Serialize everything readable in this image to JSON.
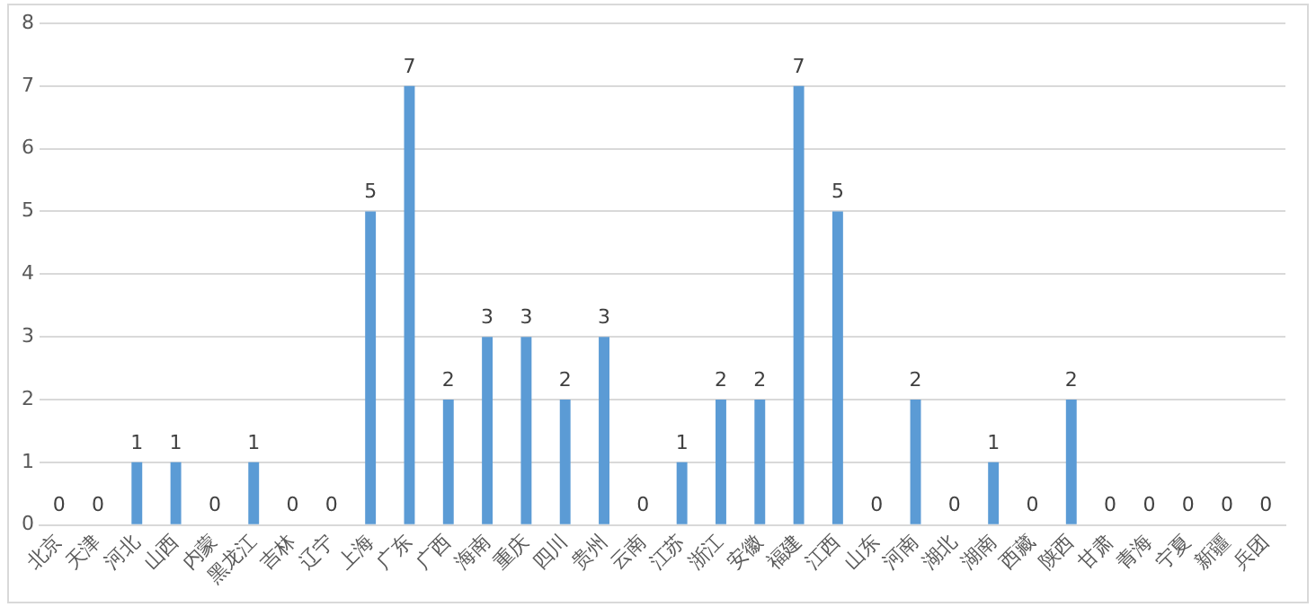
{
  "chart_data": {
    "type": "bar",
    "categories": [
      "北京",
      "天津",
      "河北",
      "山西",
      "内蒙",
      "黑龙江",
      "吉林",
      "辽宁",
      "上海",
      "广东",
      "广西",
      "海南",
      "重庆",
      "四川",
      "贵州",
      "云南",
      "江苏",
      "浙江",
      "安徽",
      "福建",
      "江西",
      "山东",
      "河南",
      "湖北",
      "湖南",
      "西藏",
      "陕西",
      "甘肃",
      "青海",
      "宁夏",
      "新疆",
      "兵团"
    ],
    "values": [
      0,
      0,
      1,
      1,
      0,
      1,
      0,
      0,
      5,
      7,
      2,
      3,
      3,
      2,
      3,
      0,
      1,
      2,
      2,
      7,
      5,
      0,
      2,
      0,
      1,
      0,
      2,
      0,
      0,
      0,
      0,
      0
    ],
    "color": "#5b9bd5",
    "ylim": [
      0,
      8
    ],
    "yticks": [
      0,
      1,
      2,
      3,
      4,
      5,
      6,
      7,
      8
    ],
    "grid": "y",
    "data_labels": true
  }
}
